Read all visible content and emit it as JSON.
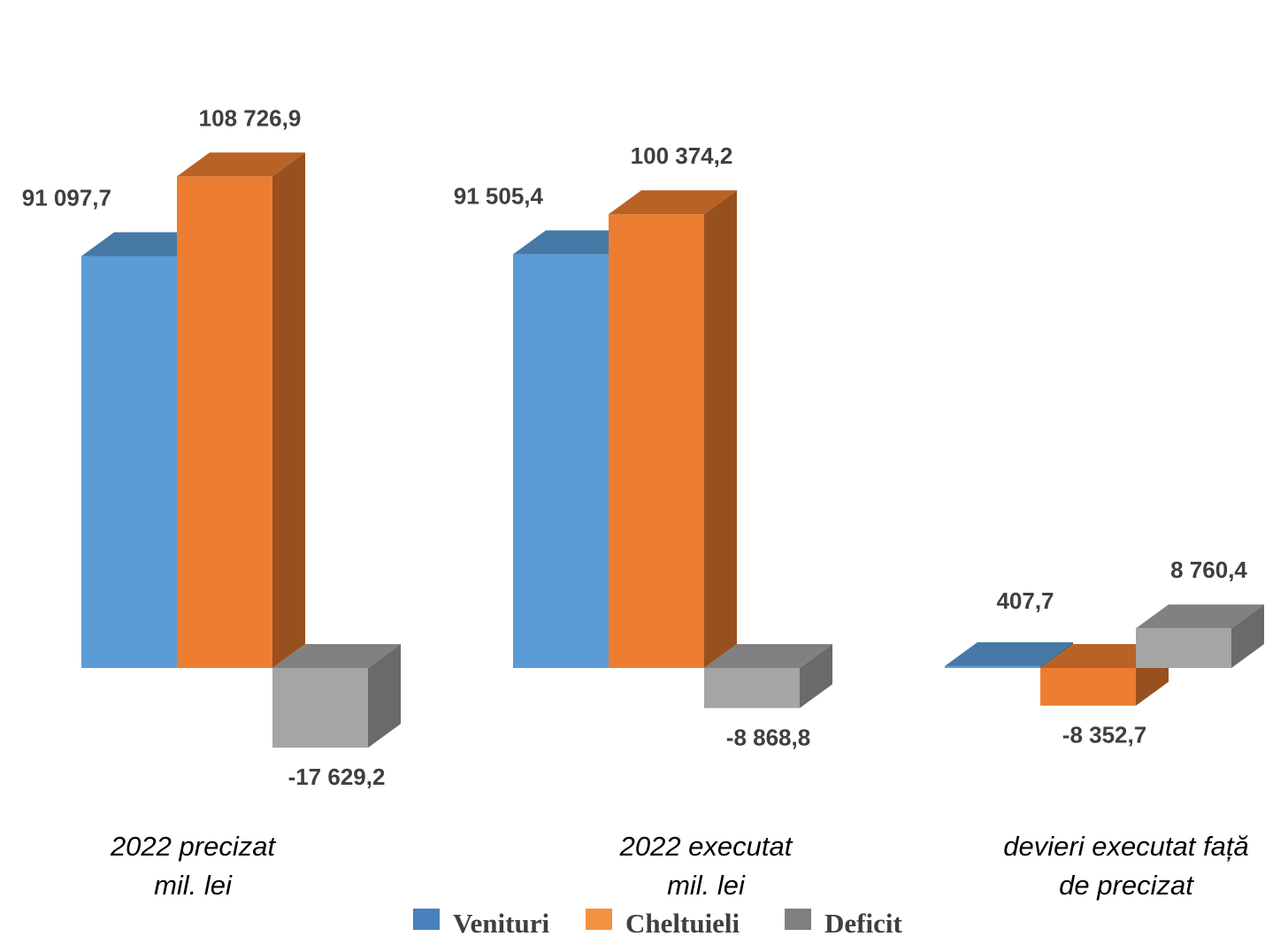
{
  "chart_data": {
    "type": "bar",
    "style": "3d-clustered-column",
    "categories": [
      [
        "2022 precizat",
        "mil. lei"
      ],
      [
        "2022 executat",
        "mil. lei"
      ],
      [
        "devieri executat față",
        "de precizat"
      ]
    ],
    "series": [
      {
        "name": "Venituri",
        "color": "#5b9bd5",
        "values": [
          91097.7,
          91505.4,
          407.7
        ],
        "labels": [
          "91 097,7",
          "91 505,4",
          "407,7"
        ]
      },
      {
        "name": "Cheltuieli",
        "color": "#ed7d31",
        "values": [
          108726.9,
          100374.2,
          -8352.7
        ],
        "labels": [
          "108 726,9",
          "100 374,2",
          "-8 352,7"
        ]
      },
      {
        "name": "Deficit",
        "color": "#a5a5a5",
        "values": [
          -17629.2,
          -8868.8,
          8760.4
        ],
        "labels": [
          "-17 629,2",
          "-8 868,8",
          "8 760,4"
        ]
      }
    ],
    "legend": {
      "position": "bottom"
    },
    "grid": false
  }
}
